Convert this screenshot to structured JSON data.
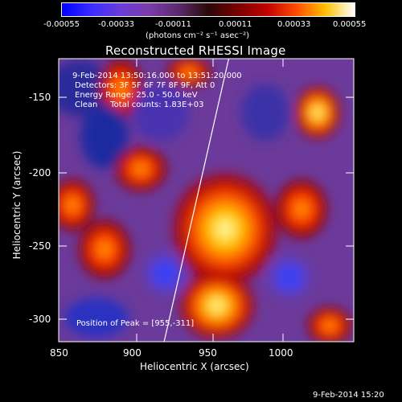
{
  "colorbar": {
    "ticks": [
      "-0.00055",
      "-0.00033",
      "-0.00011",
      "0.00011",
      "0.00033",
      "0.00055"
    ],
    "unit_label": "(photons cm⁻² s⁻¹ asec⁻²)"
  },
  "image": {
    "title": "Reconstructed RHESSI Image",
    "annotations": [
      "9-Feb-2014 13:50:16.000 to 13:51:20.000",
      "Detectors: 3F 5F 6F 7F 8F 9F, Att 0",
      "Energy Range: 25.0 - 50.0 keV",
      "Clean     Total counts: 1.83E+03"
    ],
    "peak_text": "Position of Peak = [955,-311]",
    "x_axis": {
      "label": "Heliocentric X (arcsec)",
      "ticks": [
        "850",
        "900",
        "950",
        "1000"
      ],
      "range": [
        850,
        1040
      ]
    },
    "y_axis": {
      "label": "Heliocentric Y (arcsec)",
      "ticks": [
        "-150",
        "-200",
        "-250",
        "-300"
      ],
      "range": [
        -320,
        -130
      ]
    }
  },
  "footer": {
    "timestamp": "9-Feb-2014 15:20"
  }
}
